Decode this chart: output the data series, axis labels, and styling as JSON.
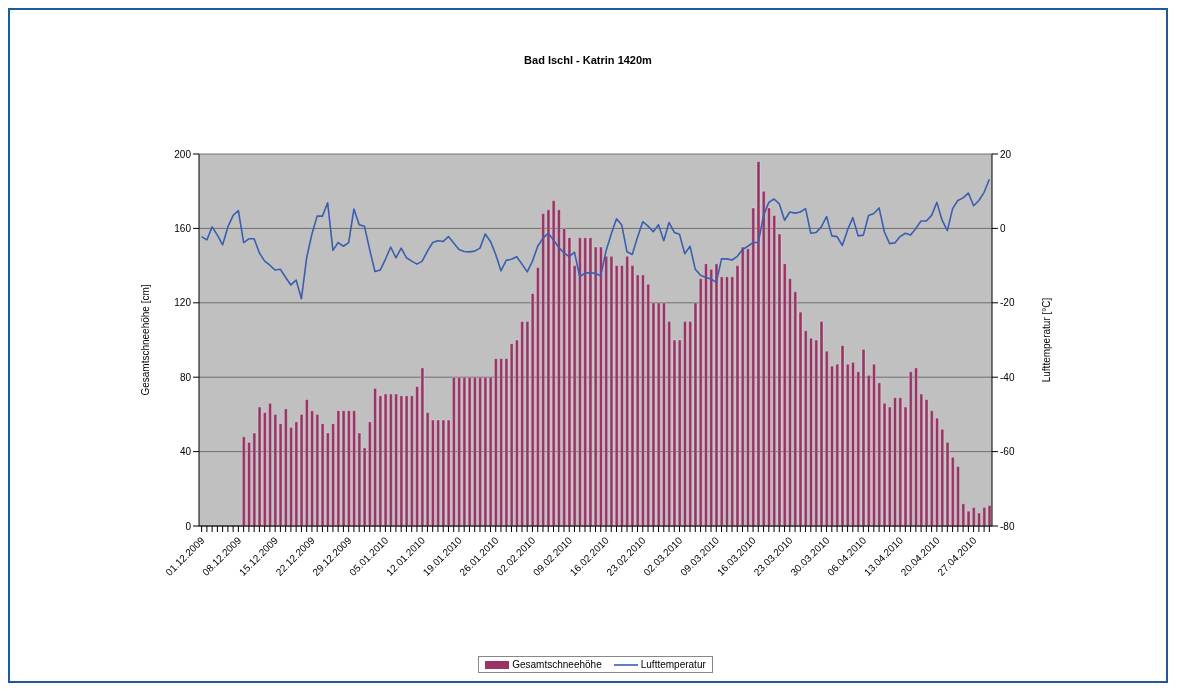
{
  "chart_data": {
    "type": "bar",
    "title": "Bad Ischl - Katrin 1420m",
    "ylabel": "Gesamtschneehöhe [cm]",
    "y2label": "Lufttemperatur [°C]",
    "categories": [
      "01.12.2009",
      null,
      null,
      null,
      null,
      null,
      null,
      "08.12.2009",
      null,
      null,
      null,
      null,
      null,
      null,
      "15.12.2009",
      null,
      null,
      null,
      null,
      null,
      null,
      "22.12.2009",
      null,
      null,
      null,
      null,
      null,
      null,
      "29.12.2009",
      null,
      null,
      null,
      null,
      null,
      null,
      "05.01.2010",
      null,
      null,
      null,
      null,
      null,
      null,
      "12.01.2010",
      null,
      null,
      null,
      null,
      null,
      null,
      "19.01.2010",
      null,
      null,
      null,
      null,
      null,
      null,
      "26.01.2010",
      null,
      null,
      null,
      null,
      null,
      null,
      "02.02.2010",
      null,
      null,
      null,
      null,
      null,
      null,
      "09.02.2010",
      null,
      null,
      null,
      null,
      null,
      null,
      "16.02.2010",
      null,
      null,
      null,
      null,
      null,
      null,
      "23.02.2010",
      null,
      null,
      null,
      null,
      null,
      null,
      "02.03.2010",
      null,
      null,
      null,
      null,
      null,
      null,
      "09.03.2010",
      null,
      null,
      null,
      null,
      null,
      null,
      "16.03.2010",
      null,
      null,
      null,
      null,
      null,
      null,
      "23.03.2010",
      null,
      null,
      null,
      null,
      null,
      null,
      "30.03.2010",
      null,
      null,
      null,
      null,
      null,
      null,
      "06.04.2010",
      null,
      null,
      null,
      null,
      null,
      null,
      "13.04.2010",
      null,
      null,
      null,
      null,
      null,
      null,
      "20.04.2010",
      null,
      null,
      null,
      null,
      null,
      null,
      "27.04.2010",
      null,
      null,
      null
    ],
    "series": [
      {
        "name": "Gesamtschneehöhe",
        "type": "bar",
        "color": "#993366",
        "values": [
          0,
          0,
          0,
          0,
          0,
          0,
          0,
          0,
          48,
          45,
          50,
          64,
          61,
          66,
          60,
          55,
          63,
          53,
          56,
          60,
          68,
          62,
          60,
          55,
          50,
          55,
          62,
          62,
          62,
          62,
          50,
          42,
          56,
          74,
          70,
          71,
          71,
          71,
          70,
          70,
          70,
          75,
          85,
          61,
          57,
          57,
          57,
          57,
          80,
          80,
          80,
          80,
          80,
          80,
          80,
          80,
          90,
          90,
          90,
          98,
          100,
          110,
          110,
          125,
          139,
          168,
          170,
          175,
          170,
          160,
          155,
          140,
          155,
          155,
          155,
          150,
          150,
          145,
          145,
          140,
          140,
          145,
          140,
          135,
          135,
          130,
          120,
          120,
          120,
          110,
          100,
          100,
          110,
          110,
          120,
          133,
          141,
          138,
          141,
          134,
          134,
          134,
          140,
          150,
          149,
          171,
          196,
          180,
          171,
          167,
          157,
          141,
          133,
          126,
          115,
          105,
          101,
          100,
          110,
          94,
          86,
          87,
          97,
          87,
          88,
          83,
          95,
          81,
          87,
          77,
          66,
          64,
          69,
          69,
          64,
          83,
          85,
          71,
          68,
          62,
          58,
          52,
          45,
          37,
          32,
          12,
          8,
          10,
          7,
          10,
          11
        ]
      },
      {
        "name": "Lufttemperatur",
        "type": "line",
        "axis": "y2",
        "color": "#3a5fb0",
        "values": [
          -2.2,
          -3.1,
          0.4,
          -1.8,
          -4.4,
          0.4,
          3.5,
          4.8,
          -3.8,
          -2.8,
          -2.8,
          -6.6,
          -8.8,
          -9.9,
          -11.2,
          -11,
          -13.2,
          -15.2,
          -13.9,
          -18.9,
          -7.9,
          -1.5,
          3.3,
          3.3,
          6.9,
          -5.9,
          -3.8,
          -4.8,
          -3.8,
          5.2,
          1,
          0.6,
          -5.7,
          -11.6,
          -11.2,
          -8.3,
          -5,
          -7.9,
          -5.3,
          -7.9,
          -8.8,
          -9.6,
          -8.8,
          -6.1,
          -3.8,
          -3.3,
          -3.5,
          -2.2,
          -3.9,
          -5.7,
          -6.2,
          -6.3,
          -6.1,
          -5.3,
          -1.5,
          -3.5,
          -7,
          -11.4,
          -8.6,
          -8.3,
          -7.6,
          -9.6,
          -11.7,
          -8.8,
          -4.8,
          -2.6,
          -1.3,
          -3.1,
          -5.1,
          -6.6,
          -7.6,
          -6.4,
          -13,
          -12,
          -11.9,
          -12.1,
          -12.7,
          -6.1,
          -1.5,
          2.6,
          0.9,
          -6.3,
          -7,
          -2.4,
          1.8,
          0.6,
          -0.9,
          1,
          -3.3,
          1.6,
          -1.1,
          -1.6,
          -6.8,
          -4.8,
          -11,
          -12.6,
          -13.2,
          -13.6,
          -14.5,
          -8.2,
          -8.2,
          -8.5,
          -7.5,
          -5.7,
          -4.8,
          -3.8,
          -3.8,
          3.5,
          7,
          7.9,
          6.6,
          2.2,
          4.4,
          4.1,
          4.4,
          5.3,
          -1.3,
          -1.1,
          0.4,
          3.2,
          -2,
          -2.2,
          -4.6,
          -0.4,
          2.9,
          -2,
          -1.8,
          3.5,
          4,
          5.5,
          -0.9,
          -4.1,
          -3.9,
          -2.2,
          -1.3,
          -1.8,
          0,
          2,
          2,
          3.5,
          7,
          2.2,
          -0.6,
          5.3,
          7.5,
          8.2,
          9.5,
          6.1,
          7.5,
          9.7,
          13.2
        ]
      }
    ],
    "ylim": [
      0,
      200
    ],
    "yticks": [
      0,
      40,
      80,
      120,
      160,
      200
    ],
    "y2lim": [
      -80,
      20
    ],
    "y2ticks": [
      -80,
      -60,
      -40,
      -20,
      0,
      20
    ],
    "grid": "y",
    "legend": "bottom",
    "marker": "none",
    "line_style": "solid"
  }
}
